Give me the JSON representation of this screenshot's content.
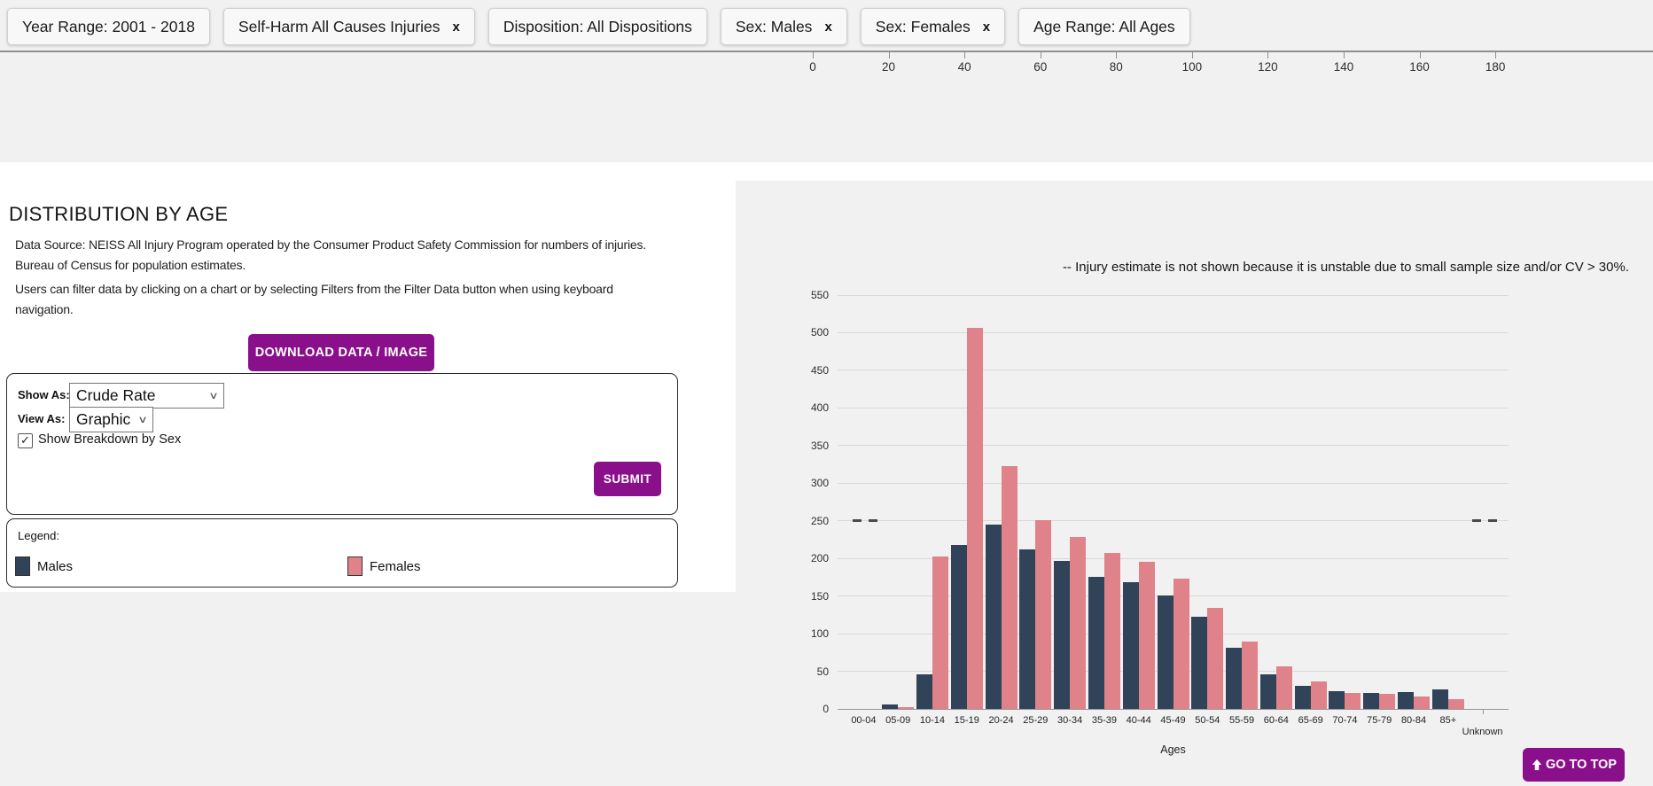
{
  "filter_bar": {
    "chips": [
      {
        "label": "Year Range: 2001 - 2018",
        "removable": false
      },
      {
        "label": "Self-Harm All Causes Injuries",
        "removable": true
      },
      {
        "label": "Disposition: All Dispositions",
        "removable": false
      },
      {
        "label": "Sex: Males",
        "removable": true
      },
      {
        "label": "Sex: Females",
        "removable": true
      },
      {
        "label": "Age Range: All Ages",
        "removable": false
      }
    ],
    "remove_icon": "x"
  },
  "top_axis": {
    "tick_labels": [
      "0",
      "20",
      "40",
      "60",
      "80",
      "100",
      "120",
      "140",
      "160",
      "180"
    ]
  },
  "section": {
    "title": "DISTRIBUTION BY AGE",
    "data_source_lines": [
      "Data Source: NEISS All Injury Program operated by the Consumer Product Safety Commission for numbers of injuries.",
      "Bureau of Census for population estimates."
    ],
    "usage_lines": [
      "Users can filter data by clicking on a chart or by selecting Filters from the Filter Data button when using keyboard",
      "navigation."
    ],
    "download_button": "DOWNLOAD DATA / IMAGE"
  },
  "controls": {
    "show_as_label": "Show As:",
    "show_as_value": "Crude Rate",
    "view_as_label": "View As:",
    "view_as_value": "Graphic",
    "breakdown_checkbox_label": "Show Breakdown by Sex",
    "breakdown_checked": true,
    "submit_button": "SUBMIT"
  },
  "legend": {
    "title": "Legend:",
    "items": [
      {
        "label": "Males",
        "color": "#304358"
      },
      {
        "label": "Females",
        "color": "#df8289"
      }
    ]
  },
  "chart_data": {
    "type": "bar",
    "title": "",
    "xlabel": "Ages",
    "ylabel": "",
    "categories": [
      "00-04",
      "05-09",
      "10-14",
      "15-19",
      "20-24",
      "25-29",
      "30-34",
      "35-39",
      "40-44",
      "45-49",
      "50-54",
      "55-59",
      "60-64",
      "65-69",
      "70-74",
      "75-79",
      "80-84",
      "85+",
      "Unknown"
    ],
    "series": [
      {
        "name": "Males",
        "color": "#304358",
        "values": [
          null,
          6,
          46,
          218,
          245,
          212,
          197,
          176,
          168,
          151,
          123,
          81,
          46,
          31,
          24,
          21,
          22,
          26,
          null
        ]
      },
      {
        "name": "Females",
        "color": "#df8289",
        "values": [
          null,
          2,
          203,
          507,
          323,
          251,
          228,
          207,
          195,
          173,
          134,
          89,
          56,
          36,
          21,
          20,
          16,
          13,
          null
        ]
      }
    ],
    "ylim": [
      0,
      550
    ],
    "ytick_step": 50,
    "grid": true,
    "legend_position": "left-panel",
    "suppressed_marker_value": 250,
    "note": "-- Injury estimate is not shown because it is unstable due to small sample size and/or CV > 30%."
  },
  "footer": {
    "go_to_top_button": "GO TO TOP"
  },
  "colors": {
    "accent_purple": "#8a0f8a",
    "male_bar": "#304358",
    "female_bar": "#df8289"
  }
}
